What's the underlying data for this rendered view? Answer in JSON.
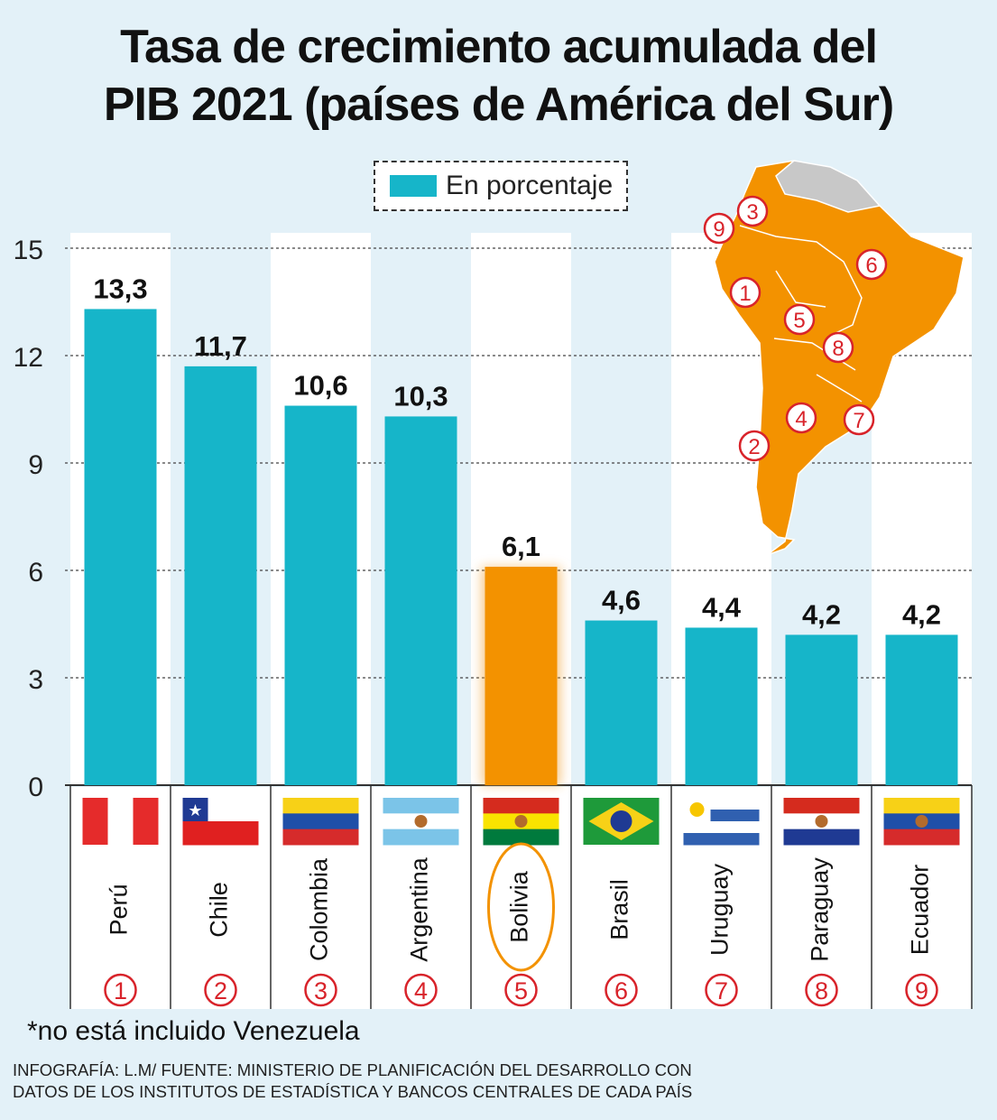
{
  "title_line1": "Tasa de crecimiento acumulada del",
  "title_line2": "PIB 2021 (países de América del Sur)",
  "legend_label": "En porcentaje",
  "footnote": "*no está incluido Venezuela",
  "source_line1": "INFOGRAFÍA: L.M/ FUENTE: MINISTERIO DE PLANIFICACIÓN DEL DESARROLLO CON",
  "source_line2": "DATOS DE LOS INSTITUTOS DE ESTADÍSTICA Y BANCOS CENTRALES DE CADA PAÍS",
  "colors": {
    "bar": "#16b5c9",
    "highlight": "#f39200",
    "marker": "#d8232a",
    "map_land": "#f39200",
    "map_gray": "#c8c8c8"
  },
  "map_markers": [
    "1",
    "2",
    "3",
    "4",
    "5",
    "6",
    "7",
    "8",
    "9"
  ],
  "chart_data": {
    "type": "bar",
    "categories": [
      "Perú",
      "Chile",
      "Colombia",
      "Argentina",
      "Bolivia",
      "Brasil",
      "Uruguay",
      "Paraguay",
      "Ecuador"
    ],
    "numbers": [
      "1",
      "2",
      "3",
      "4",
      "5",
      "6",
      "7",
      "8",
      "9"
    ],
    "values": [
      13.3,
      11.7,
      10.6,
      10.3,
      6.1,
      4.6,
      4.4,
      4.2,
      4.2
    ],
    "value_labels": [
      "13,3",
      "11,7",
      "10,6",
      "10,3",
      "6,1",
      "4,6",
      "4,4",
      "4,2",
      "4,2"
    ],
    "highlight": "Bolivia",
    "yticks": [
      0,
      3,
      6,
      9,
      12,
      15
    ],
    "ylim": [
      0,
      15
    ],
    "grid": true,
    "legend_position": "top-center"
  }
}
